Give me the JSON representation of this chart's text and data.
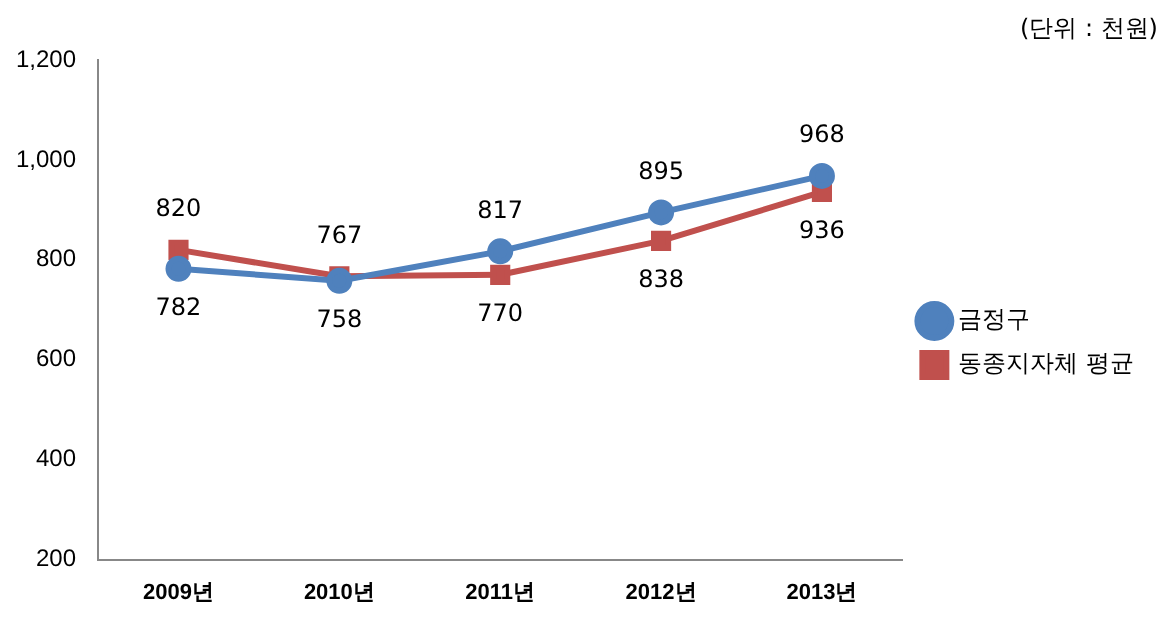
{
  "chart_data": {
    "type": "line",
    "annotations": [
      "(단위 : 천원)"
    ],
    "categories": [
      "2009년",
      "2010년",
      "2011년",
      "2012년",
      "2013년"
    ],
    "series": [
      {
        "name": "금정구",
        "color": "#4f81bd",
        "marker": "circle",
        "values": [
          782,
          758,
          817,
          895,
          968
        ]
      },
      {
        "name": "동종지자체 평균",
        "color": "#c0504d",
        "marker": "square",
        "values": [
          820,
          767,
          770,
          838,
          936
        ]
      }
    ],
    "ylim": [
      200,
      1200
    ],
    "yticks": [
      200,
      400,
      600,
      800,
      {
        "value": 1000,
        "label": "1,000"
      },
      {
        "value": 1200,
        "label": "1,200"
      }
    ],
    "grid": false,
    "legend": "right",
    "data_labels": true,
    "line_style": "solid"
  }
}
